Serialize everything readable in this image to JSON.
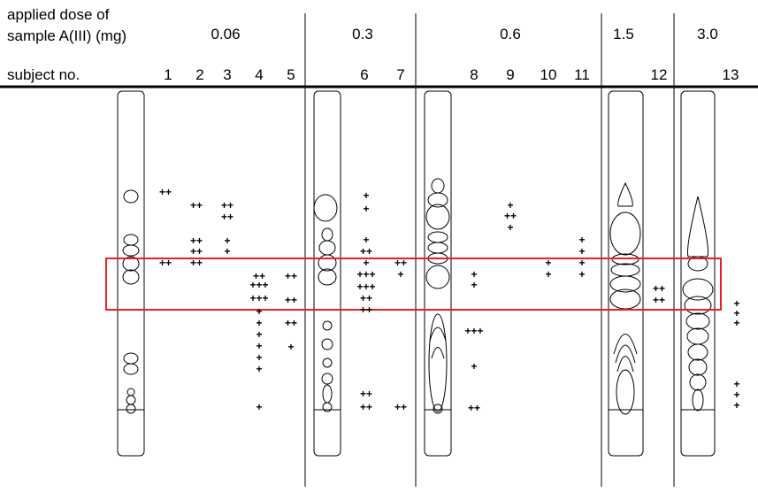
{
  "header": {
    "dose_label": [
      "applied dose of",
      "sample A(III) (mg)"
    ],
    "subject_label": "subject no."
  },
  "doses": [
    "0.06",
    "0.3",
    "0.6",
    "1.5",
    "3.0"
  ],
  "subjects": [
    "1",
    "2",
    "3",
    "4",
    "5",
    "6",
    "7",
    "8",
    "9",
    "10",
    "11",
    "12",
    "13"
  ],
  "marks": [
    [
      "++",
      "++"
    ],
    [
      "++",
      "++",
      "++",
      "++"
    ],
    [
      "++",
      "++",
      "+",
      "+"
    ],
    [
      "++",
      "+++",
      "+++",
      "+",
      "+",
      "+",
      "+",
      "+",
      "+",
      "+"
    ],
    [
      "++",
      "++",
      "++",
      "+"
    ],
    [
      "+",
      "+",
      "+",
      "++",
      "+",
      "+++",
      "+++",
      "++",
      "++",
      "++",
      "++"
    ],
    [
      "++",
      "+",
      "++"
    ],
    [
      "+",
      "+",
      "+++",
      "+",
      "++"
    ],
    [
      "+",
      "++",
      "+"
    ],
    [
      "+",
      "+"
    ],
    [
      "+",
      "+",
      "+",
      "+"
    ],
    [
      "++",
      "++"
    ],
    [
      "+",
      "+",
      "+",
      "+",
      "+",
      "+"
    ]
  ]
}
